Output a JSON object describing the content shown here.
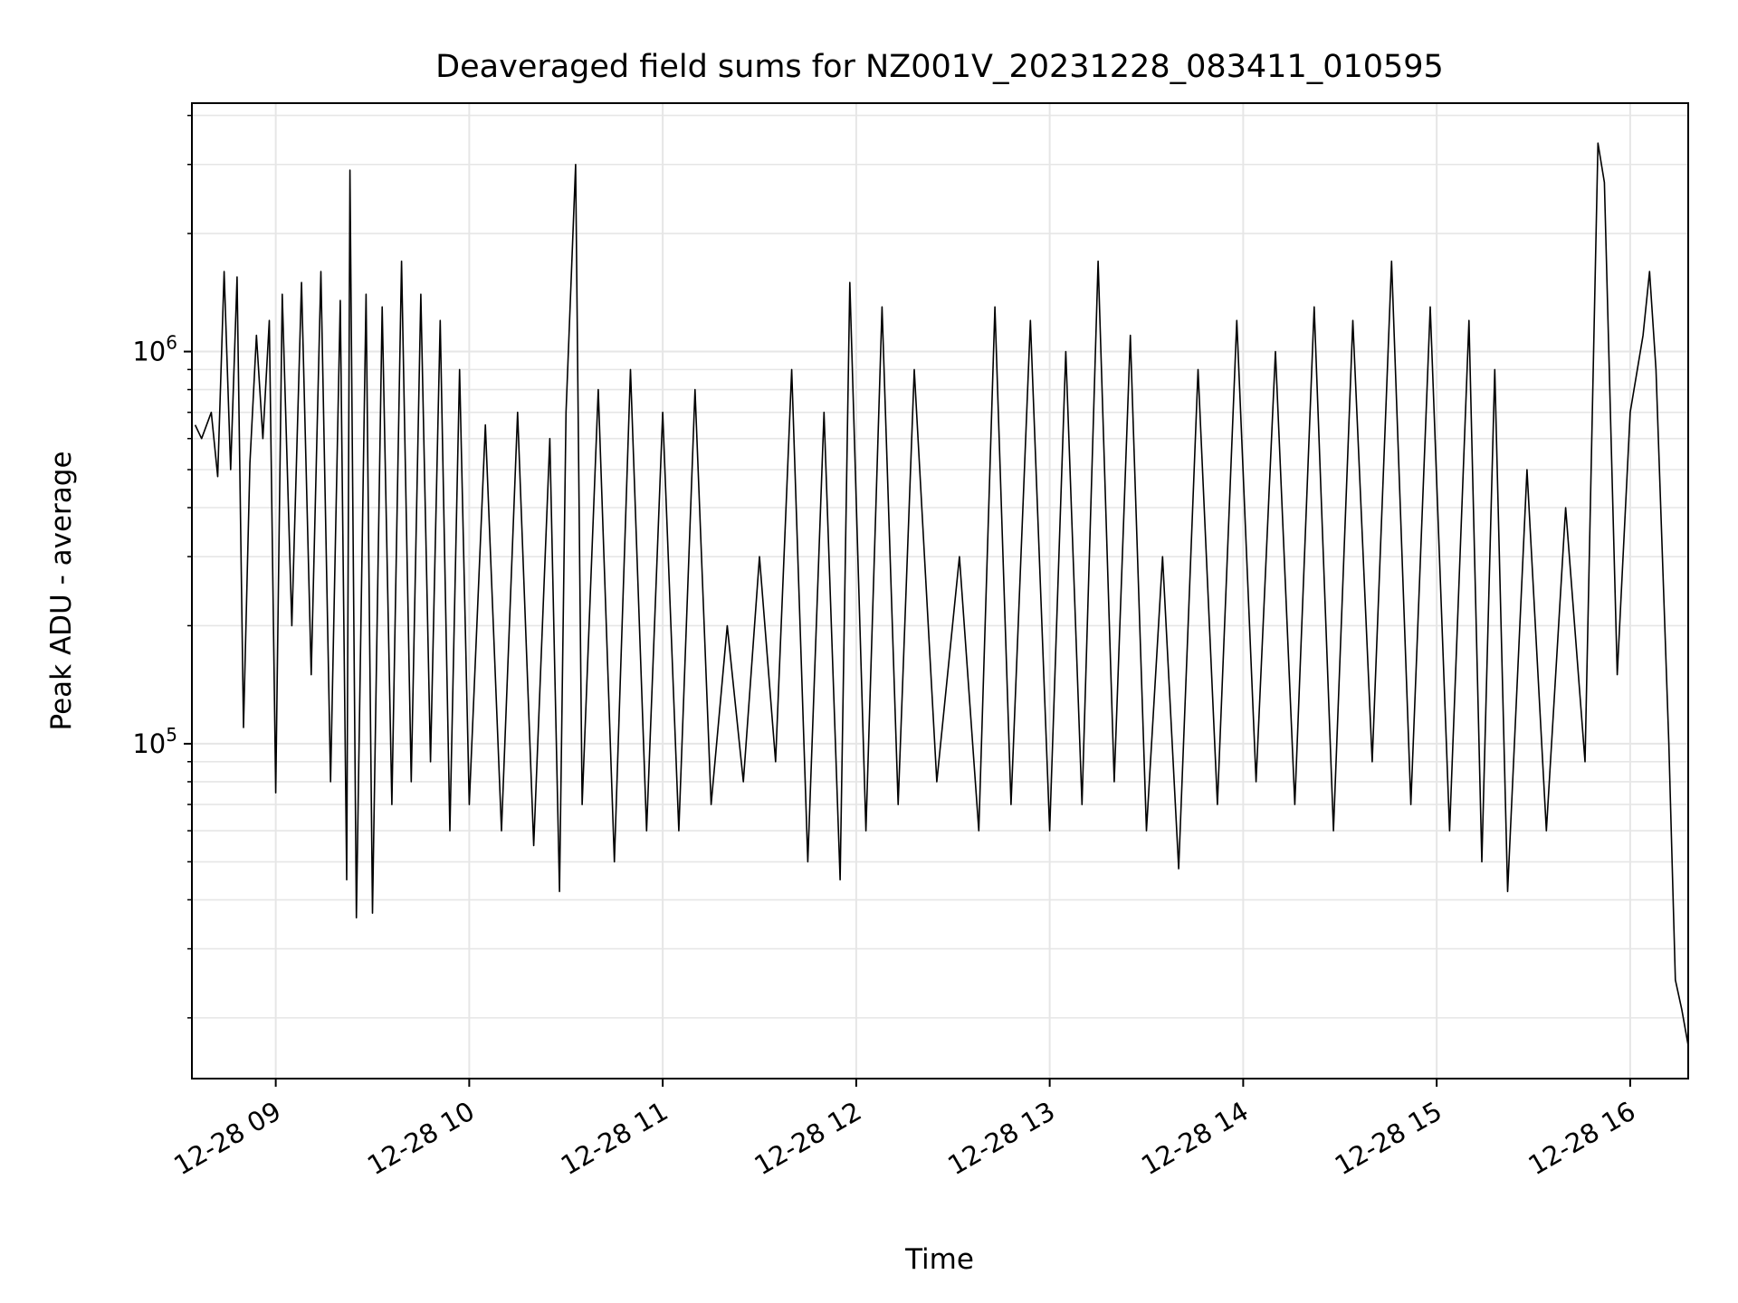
{
  "chart_data": {
    "type": "line",
    "title": "Deaveraged field sums for NZ001V_20231228_083411_010595",
    "xlabel": "Time",
    "ylabel": "Peak ADU - average",
    "yscale": "log",
    "grid": true,
    "line_color": "#000000",
    "grid_color": "#e6e6e6",
    "xlim": [
      "2023-12-28 08:34",
      "2023-12-28 16:18"
    ],
    "ylim": [
      14000,
      4300000
    ],
    "x_ticks": [
      {
        "value": "2023-12-28 09:00",
        "label": "12-28 09"
      },
      {
        "value": "2023-12-28 10:00",
        "label": "12-28 10"
      },
      {
        "value": "2023-12-28 11:00",
        "label": "12-28 11"
      },
      {
        "value": "2023-12-28 12:00",
        "label": "12-28 12"
      },
      {
        "value": "2023-12-28 13:00",
        "label": "12-28 13"
      },
      {
        "value": "2023-12-28 14:00",
        "label": "12-28 14"
      },
      {
        "value": "2023-12-28 15:00",
        "label": "12-28 15"
      },
      {
        "value": "2023-12-28 16:00",
        "label": "12-28 16"
      }
    ],
    "y_ticks": [
      {
        "value": 100000,
        "base": "10",
        "exp": "5"
      },
      {
        "value": 1000000,
        "base": "10",
        "exp": "6"
      }
    ],
    "series": [
      {
        "points": [
          [
            "2023-12-28 08:35",
            650000
          ],
          [
            "2023-12-28 08:37",
            600000
          ],
          [
            "2023-12-28 08:40",
            700000
          ],
          [
            "2023-12-28 08:42",
            480000
          ],
          [
            "2023-12-28 08:44",
            1600000
          ],
          [
            "2023-12-28 08:46",
            500000
          ],
          [
            "2023-12-28 08:48",
            1550000
          ],
          [
            "2023-12-28 08:50",
            110000
          ],
          [
            "2023-12-28 08:52",
            520000
          ],
          [
            "2023-12-28 08:54",
            1100000
          ],
          [
            "2023-12-28 08:56",
            600000
          ],
          [
            "2023-12-28 08:58",
            1200000
          ],
          [
            "2023-12-28 09:00",
            75000
          ],
          [
            "2023-12-28 09:02",
            1400000
          ],
          [
            "2023-12-28 09:05",
            200000
          ],
          [
            "2023-12-28 09:08",
            1500000
          ],
          [
            "2023-12-28 09:11",
            150000
          ],
          [
            "2023-12-28 09:14",
            1600000
          ],
          [
            "2023-12-28 09:17",
            80000
          ],
          [
            "2023-12-28 09:20",
            1350000
          ],
          [
            "2023-12-28 09:22",
            45000
          ],
          [
            "2023-12-28 09:23",
            2900000
          ],
          [
            "2023-12-28 09:25",
            36000
          ],
          [
            "2023-12-28 09:28",
            1400000
          ],
          [
            "2023-12-28 09:30",
            37000
          ],
          [
            "2023-12-28 09:33",
            1300000
          ],
          [
            "2023-12-28 09:36",
            70000
          ],
          [
            "2023-12-28 09:39",
            1700000
          ],
          [
            "2023-12-28 09:42",
            80000
          ],
          [
            "2023-12-28 09:45",
            1400000
          ],
          [
            "2023-12-28 09:48",
            90000
          ],
          [
            "2023-12-28 09:51",
            1200000
          ],
          [
            "2023-12-28 09:54",
            60000
          ],
          [
            "2023-12-28 09:57",
            900000
          ],
          [
            "2023-12-28 10:00",
            70000
          ],
          [
            "2023-12-28 10:05",
            650000
          ],
          [
            "2023-12-28 10:10",
            60000
          ],
          [
            "2023-12-28 10:15",
            700000
          ],
          [
            "2023-12-28 10:20",
            55000
          ],
          [
            "2023-12-28 10:25",
            600000
          ],
          [
            "2023-12-28 10:28",
            42000
          ],
          [
            "2023-12-28 10:30",
            700000
          ],
          [
            "2023-12-28 10:33",
            3000000
          ],
          [
            "2023-12-28 10:35",
            70000
          ],
          [
            "2023-12-28 10:40",
            800000
          ],
          [
            "2023-12-28 10:45",
            50000
          ],
          [
            "2023-12-28 10:50",
            900000
          ],
          [
            "2023-12-28 10:55",
            60000
          ],
          [
            "2023-12-28 11:00",
            700000
          ],
          [
            "2023-12-28 11:05",
            60000
          ],
          [
            "2023-12-28 11:10",
            800000
          ],
          [
            "2023-12-28 11:15",
            70000
          ],
          [
            "2023-12-28 11:20",
            200000
          ],
          [
            "2023-12-28 11:25",
            80000
          ],
          [
            "2023-12-28 11:30",
            300000
          ],
          [
            "2023-12-28 11:35",
            90000
          ],
          [
            "2023-12-28 11:40",
            900000
          ],
          [
            "2023-12-28 11:45",
            50000
          ],
          [
            "2023-12-28 11:50",
            700000
          ],
          [
            "2023-12-28 11:55",
            45000
          ],
          [
            "2023-12-28 11:58",
            1500000
          ],
          [
            "2023-12-28 12:03",
            60000
          ],
          [
            "2023-12-28 12:08",
            1300000
          ],
          [
            "2023-12-28 12:13",
            70000
          ],
          [
            "2023-12-28 12:18",
            900000
          ],
          [
            "2023-12-28 12:25",
            80000
          ],
          [
            "2023-12-28 12:32",
            300000
          ],
          [
            "2023-12-28 12:38",
            60000
          ],
          [
            "2023-12-28 12:43",
            1300000
          ],
          [
            "2023-12-28 12:48",
            70000
          ],
          [
            "2023-12-28 12:54",
            1200000
          ],
          [
            "2023-12-28 13:00",
            60000
          ],
          [
            "2023-12-28 13:05",
            1000000
          ],
          [
            "2023-12-28 13:10",
            70000
          ],
          [
            "2023-12-28 13:15",
            1700000
          ],
          [
            "2023-12-28 13:20",
            80000
          ],
          [
            "2023-12-28 13:25",
            1100000
          ],
          [
            "2023-12-28 13:30",
            60000
          ],
          [
            "2023-12-28 13:35",
            300000
          ],
          [
            "2023-12-28 13:40",
            48000
          ],
          [
            "2023-12-28 13:46",
            900000
          ],
          [
            "2023-12-28 13:52",
            70000
          ],
          [
            "2023-12-28 13:58",
            1200000
          ],
          [
            "2023-12-28 14:04",
            80000
          ],
          [
            "2023-12-28 14:10",
            1000000
          ],
          [
            "2023-12-28 14:16",
            70000
          ],
          [
            "2023-12-28 14:22",
            1300000
          ],
          [
            "2023-12-28 14:28",
            60000
          ],
          [
            "2023-12-28 14:34",
            1200000
          ],
          [
            "2023-12-28 14:40",
            90000
          ],
          [
            "2023-12-28 14:46",
            1700000
          ],
          [
            "2023-12-28 14:52",
            70000
          ],
          [
            "2023-12-28 14:58",
            1300000
          ],
          [
            "2023-12-28 15:04",
            60000
          ],
          [
            "2023-12-28 15:10",
            1200000
          ],
          [
            "2023-12-28 15:14",
            50000
          ],
          [
            "2023-12-28 15:18",
            900000
          ],
          [
            "2023-12-28 15:22",
            42000
          ],
          [
            "2023-12-28 15:28",
            500000
          ],
          [
            "2023-12-28 15:34",
            60000
          ],
          [
            "2023-12-28 15:40",
            400000
          ],
          [
            "2023-12-28 15:46",
            90000
          ],
          [
            "2023-12-28 15:50",
            3400000
          ],
          [
            "2023-12-28 15:52",
            2700000
          ],
          [
            "2023-12-28 15:56",
            150000
          ],
          [
            "2023-12-28 16:00",
            700000
          ],
          [
            "2023-12-28 16:04",
            1100000
          ],
          [
            "2023-12-28 16:06",
            1600000
          ],
          [
            "2023-12-28 16:08",
            900000
          ],
          [
            "2023-12-28 16:10",
            300000
          ],
          [
            "2023-12-28 16:12",
            100000
          ],
          [
            "2023-12-28 16:14",
            25000
          ],
          [
            "2023-12-28 16:16",
            21000
          ],
          [
            "2023-12-28 16:18",
            17000
          ]
        ]
      }
    ]
  }
}
